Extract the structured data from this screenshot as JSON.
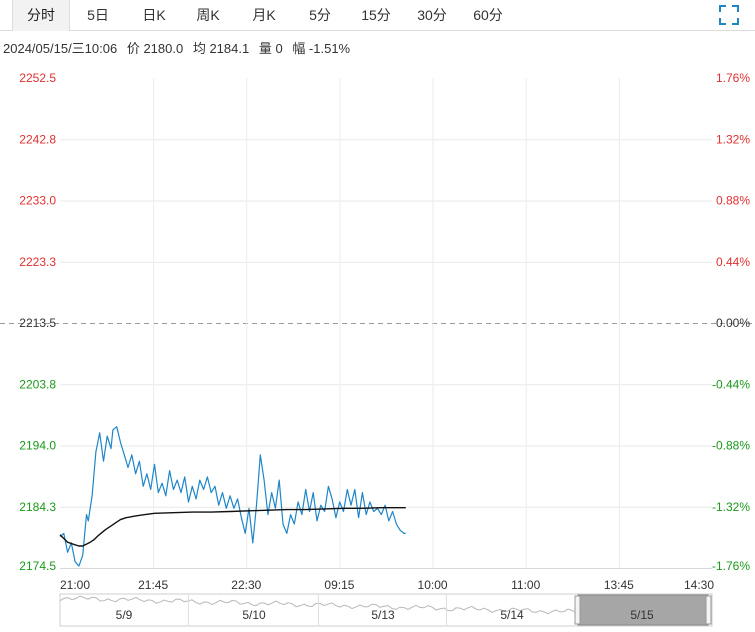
{
  "tabs": [
    {
      "label": "分时",
      "active": true
    },
    {
      "label": "5日",
      "active": false
    },
    {
      "label": "日K",
      "active": false
    },
    {
      "label": "周K",
      "active": false
    },
    {
      "label": "月K",
      "active": false
    },
    {
      "label": "5分",
      "active": false
    },
    {
      "label": "15分",
      "active": false
    },
    {
      "label": "30分",
      "active": false
    },
    {
      "label": "60分",
      "active": false
    }
  ],
  "info": {
    "datetime": "2024/05/15/三10:06",
    "price": "价 2180.0",
    "avg": "均 2184.1",
    "volume": "量 0",
    "change": "幅 -1.51%"
  },
  "colors": {
    "up": "#e03030",
    "down": "#1a9a1a",
    "flat": "#333333",
    "price_line": "#1f86c8",
    "avg_line": "#111111"
  },
  "chart_data": {
    "type": "line",
    "reference_price": 2213.5,
    "y_ticks_left": [
      "2252.5",
      "2242.8",
      "2233.0",
      "2223.3",
      "2213.5",
      "2203.8",
      "2194.0",
      "2184.3",
      "2174.5"
    ],
    "y_ticks_right": [
      "1.76%",
      "1.32%",
      "0.88%",
      "0.44%",
      "0.00%",
      "-0.44%",
      "-0.88%",
      "-1.32%",
      "-1.76%"
    ],
    "ylim": [
      2174.5,
      2252.5
    ],
    "x_ticks": [
      "21:00",
      "21:45",
      "22:30",
      "09:15",
      "10:00",
      "11:00",
      "13:45",
      "14:30"
    ],
    "session_minutes": 345,
    "price_series": {
      "name": "价",
      "t": [
        0,
        2,
        4,
        6,
        8,
        10,
        12,
        14,
        15,
        17,
        19,
        21,
        23,
        25,
        27,
        28,
        30,
        32,
        34,
        36,
        38,
        40,
        42,
        44,
        46,
        48,
        50,
        52,
        54,
        56,
        58,
        60,
        62,
        64,
        66,
        68,
        70,
        72,
        74,
        76,
        78,
        80,
        82,
        84,
        86,
        88,
        90,
        92,
        94,
        96,
        98,
        100,
        102,
        104,
        106,
        108,
        110,
        112,
        114,
        116,
        118,
        120,
        122,
        124,
        126,
        128,
        130,
        132,
        134,
        136,
        138,
        140,
        142,
        144,
        146,
        148,
        150,
        152,
        154,
        156,
        158,
        160,
        162,
        164,
        166,
        168,
        170,
        172,
        174,
        176,
        178,
        180,
        182,
        183
      ],
      "v": [
        2179.5,
        2180.0,
        2177.0,
        2178.5,
        2175.5,
        2174.8,
        2176.5,
        2183.0,
        2182.0,
        2186.0,
        2193.0,
        2196.0,
        2191.5,
        2195.5,
        2193.5,
        2196.5,
        2197.0,
        2194.5,
        2192.5,
        2190.5,
        2192.5,
        2189.5,
        2191.5,
        2187.5,
        2189.5,
        2187.0,
        2191.0,
        2186.5,
        2188.0,
        2186.0,
        2190.0,
        2187.0,
        2188.5,
        2186.5,
        2189.0,
        2185.0,
        2187.5,
        2185.5,
        2188.5,
        2187.0,
        2189.0,
        2186.5,
        2187.5,
        2184.5,
        2186.5,
        2184.0,
        2186.0,
        2184.0,
        2185.5,
        2182.5,
        2180.0,
        2184.0,
        2178.5,
        2184.5,
        2192.5,
        2188.5,
        2183.0,
        2186.5,
        2184.0,
        2188.5,
        2181.5,
        2180.0,
        2183.0,
        2181.5,
        2185.0,
        2183.0,
        2187.0,
        2183.5,
        2186.5,
        2182.0,
        2184.5,
        2183.5,
        2187.5,
        2185.5,
        2182.5,
        2185.0,
        2183.5,
        2187.0,
        2184.5,
        2187.0,
        2182.5,
        2186.5,
        2183.0,
        2185.0,
        2183.5,
        2184.0,
        2183.0,
        2184.5,
        2182.0,
        2183.5,
        2181.5,
        2180.5,
        2180.0,
        2180.0
      ]
    },
    "avg_series": {
      "name": "均",
      "t": [
        0,
        2,
        4,
        6,
        8,
        10,
        12,
        14,
        16,
        18,
        20,
        22,
        24,
        26,
        28,
        30,
        32,
        35,
        40,
        45,
        50,
        60,
        70,
        80,
        90,
        100,
        110,
        120,
        130,
        140,
        150,
        160,
        170,
        183
      ],
      "v": [
        2179.8,
        2179.2,
        2178.6,
        2178.4,
        2178.2,
        2178.0,
        2178.0,
        2178.3,
        2178.6,
        2179.0,
        2179.6,
        2180.1,
        2180.6,
        2181.0,
        2181.4,
        2181.8,
        2182.2,
        2182.5,
        2182.8,
        2183.0,
        2183.2,
        2183.3,
        2183.4,
        2183.4,
        2183.5,
        2183.6,
        2183.7,
        2183.8,
        2183.8,
        2183.9,
        2184.0,
        2184.0,
        2184.1,
        2184.1
      ]
    },
    "overview_dates": [
      "5/9",
      "5/10",
      "5/13",
      "5/14",
      "5/15"
    ]
  }
}
